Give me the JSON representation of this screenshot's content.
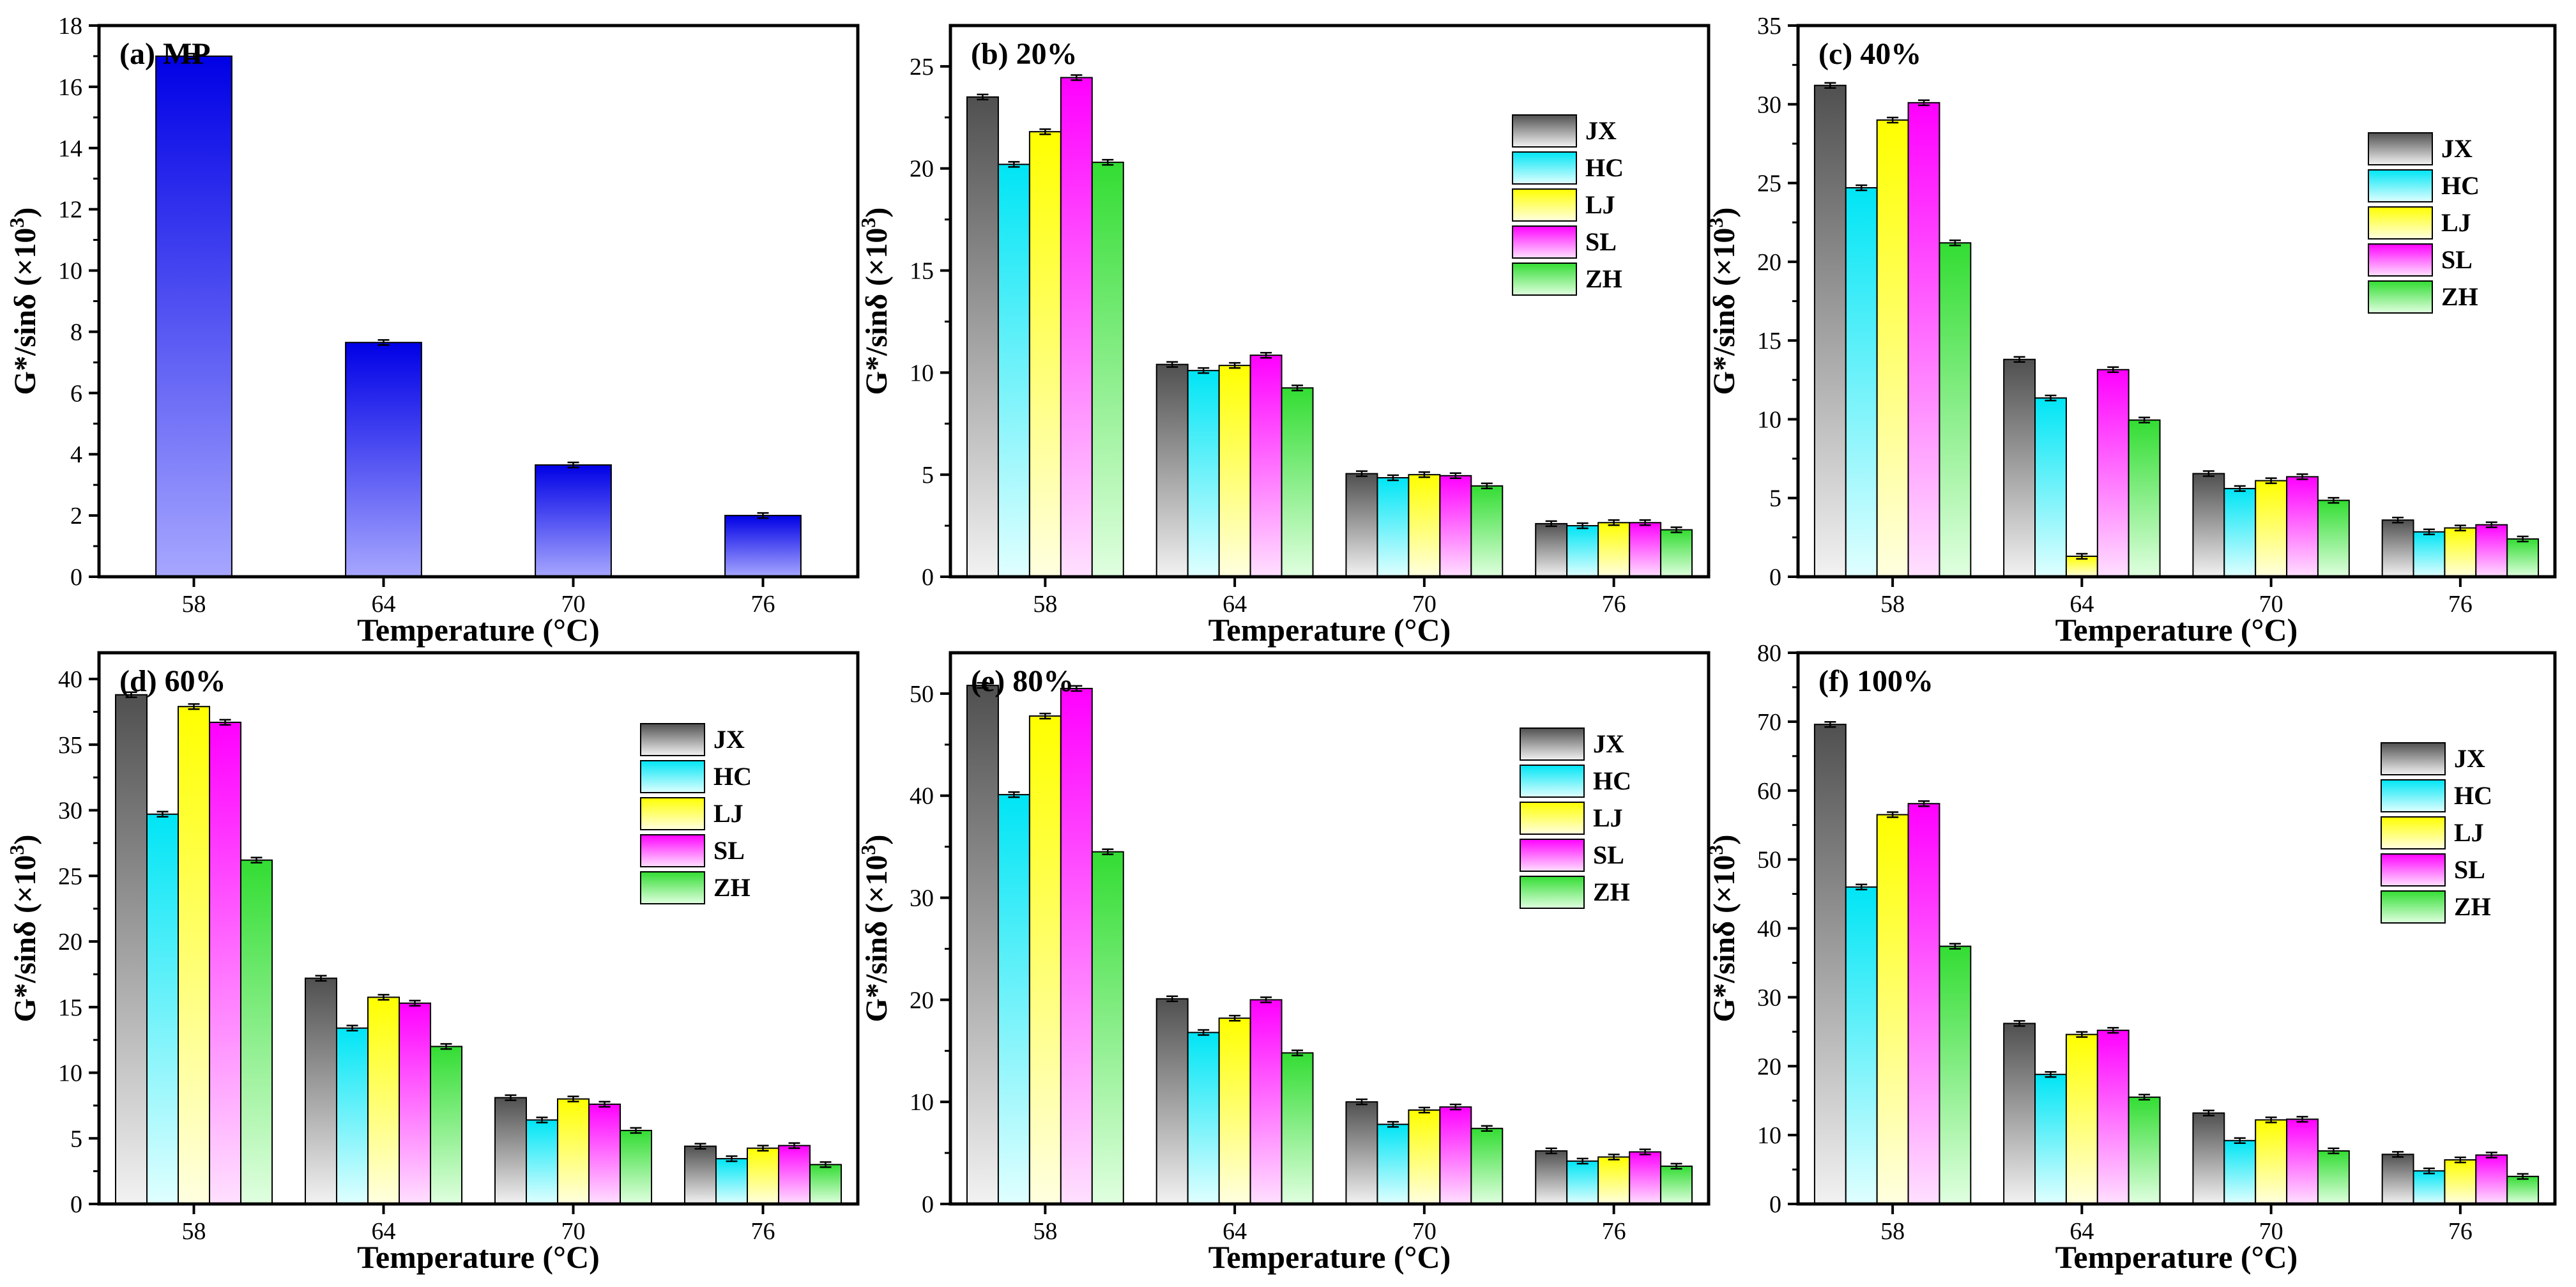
{
  "figure": {
    "xlabel": "Temperature (°C)",
    "ylabel_pre": "G*/sinδ (×10",
    "ylabel_exp": "3",
    "ylabel_post": ")"
  },
  "colors": {
    "MP": {
      "top": "#0000e6",
      "bottom": "#a7a7ff"
    },
    "JX": {
      "top": "#505050",
      "bottom": "#f2f2f2"
    },
    "HC": {
      "top": "#00e5f5",
      "bottom": "#e0ffff"
    },
    "LJ": {
      "top": "#ffff00",
      "bottom": "#ffffe0"
    },
    "SL": {
      "top": "#ff00ff",
      "bottom": "#ffe0ff"
    },
    "ZH": {
      "top": "#33dd33",
      "bottom": "#e0ffe0"
    }
  },
  "chart_data": [
    {
      "type": "bar",
      "title": "(a) MP",
      "categories": [
        "58",
        "64",
        "70",
        "76"
      ],
      "ylim": [
        0,
        18
      ],
      "yticks": [
        0,
        2,
        4,
        6,
        8,
        10,
        12,
        14,
        16,
        18
      ],
      "legend": null,
      "series": [
        {
          "name": "MP",
          "values": [
            17.0,
            7.65,
            3.65,
            2.0
          ]
        }
      ]
    },
    {
      "type": "bar",
      "title": "(b) 20%",
      "categories": [
        "58",
        "64",
        "70",
        "76"
      ],
      "ylim": [
        0,
        27
      ],
      "yticks": [
        0,
        5,
        10,
        15,
        20,
        25
      ],
      "legend": "right",
      "series": [
        {
          "name": "JX",
          "values": [
            23.5,
            10.4,
            5.05,
            2.6
          ]
        },
        {
          "name": "HC",
          "values": [
            20.2,
            10.1,
            4.85,
            2.5
          ]
        },
        {
          "name": "LJ",
          "values": [
            21.8,
            10.35,
            5.0,
            2.65
          ]
        },
        {
          "name": "SL",
          "values": [
            24.45,
            10.85,
            4.95,
            2.65
          ]
        },
        {
          "name": "ZH",
          "values": [
            20.3,
            9.25,
            4.45,
            2.3
          ]
        }
      ]
    },
    {
      "type": "bar",
      "title": "(c) 40%",
      "categories": [
        "58",
        "64",
        "70",
        "76"
      ],
      "ylim": [
        0,
        35
      ],
      "yticks": [
        0,
        5,
        10,
        15,
        20,
        25,
        30,
        35
      ],
      "legend": "right",
      "series": [
        {
          "name": "JX",
          "values": [
            31.2,
            13.8,
            6.55,
            3.6
          ]
        },
        {
          "name": "HC",
          "values": [
            24.7,
            11.35,
            5.6,
            2.85
          ]
        },
        {
          "name": "LJ",
          "values": [
            29.0,
            1.3,
            6.1,
            3.1
          ]
        },
        {
          "name": "SL",
          "values": [
            30.1,
            13.15,
            6.35,
            3.3
          ]
        },
        {
          "name": "ZH",
          "values": [
            21.2,
            9.95,
            4.85,
            2.4
          ]
        }
      ]
    },
    {
      "type": "bar",
      "title": "(d) 60%",
      "categories": [
        "58",
        "64",
        "70",
        "76"
      ],
      "ylim": [
        0,
        42
      ],
      "yticks": [
        0,
        5,
        10,
        15,
        20,
        25,
        30,
        35,
        40
      ],
      "legend": "right",
      "series": [
        {
          "name": "JX",
          "values": [
            38.8,
            17.2,
            8.1,
            4.4
          ]
        },
        {
          "name": "HC",
          "values": [
            29.7,
            13.4,
            6.4,
            3.45
          ]
        },
        {
          "name": "LJ",
          "values": [
            37.9,
            15.75,
            8.0,
            4.25
          ]
        },
        {
          "name": "SL",
          "values": [
            36.7,
            15.3,
            7.6,
            4.45
          ]
        },
        {
          "name": "ZH",
          "values": [
            26.2,
            12.0,
            5.6,
            3.0
          ]
        }
      ]
    },
    {
      "type": "bar",
      "title": "(e) 80%",
      "categories": [
        "58",
        "64",
        "70",
        "76"
      ],
      "ylim": [
        0,
        54
      ],
      "yticks": [
        0,
        10,
        20,
        30,
        40,
        50
      ],
      "legend": "right",
      "series": [
        {
          "name": "JX",
          "values": [
            50.8,
            20.1,
            10.0,
            5.2
          ]
        },
        {
          "name": "HC",
          "values": [
            40.1,
            16.8,
            7.8,
            4.2
          ]
        },
        {
          "name": "LJ",
          "values": [
            47.8,
            18.2,
            9.2,
            4.6
          ]
        },
        {
          "name": "SL",
          "values": [
            50.5,
            20.0,
            9.5,
            5.1
          ]
        },
        {
          "name": "ZH",
          "values": [
            34.5,
            14.8,
            7.4,
            3.7
          ]
        }
      ]
    },
    {
      "type": "bar",
      "title": "(f) 100%",
      "categories": [
        "58",
        "64",
        "70",
        "76"
      ],
      "ylim": [
        0,
        80
      ],
      "yticks": [
        0,
        10,
        20,
        30,
        40,
        50,
        60,
        70,
        80
      ],
      "legend": "right",
      "series": [
        {
          "name": "JX",
          "values": [
            69.6,
            26.2,
            13.2,
            7.2
          ]
        },
        {
          "name": "HC",
          "values": [
            46.0,
            18.8,
            9.2,
            4.8
          ]
        },
        {
          "name": "LJ",
          "values": [
            56.5,
            24.6,
            12.2,
            6.4
          ]
        },
        {
          "name": "SL",
          "values": [
            58.1,
            25.2,
            12.3,
            7.1
          ]
        },
        {
          "name": "ZH",
          "values": [
            37.4,
            15.5,
            7.7,
            4.0
          ]
        }
      ]
    }
  ]
}
